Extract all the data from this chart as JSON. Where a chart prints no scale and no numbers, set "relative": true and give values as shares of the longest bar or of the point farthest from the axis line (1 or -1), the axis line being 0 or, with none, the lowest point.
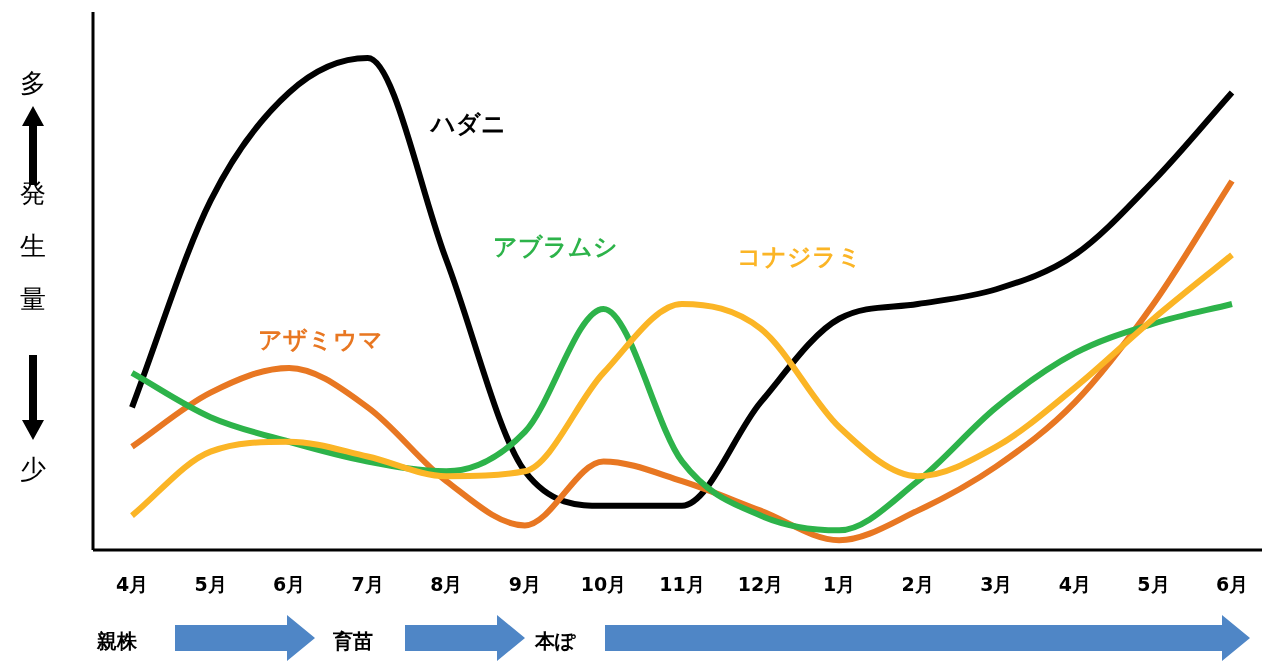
{
  "chart_data": {
    "type": "line",
    "relative": true,
    "ylabel": "発生量",
    "categories": [
      "4月",
      "5月",
      "6月",
      "7月",
      "8月",
      "9月",
      "10月",
      "11月",
      "12月",
      "1月",
      "2月",
      "3月",
      "4月",
      "5月",
      "6月"
    ],
    "series": [
      {
        "name": "ハダニ",
        "color": "#000000",
        "values": [
          0.29,
          0.71,
          0.93,
          1.0,
          0.59,
          0.16,
          0.09,
          0.09,
          0.3,
          0.47,
          0.5,
          0.53,
          0.6,
          0.75,
          0.93
        ]
      },
      {
        "name": "アザミウマ",
        "color": "#e87722",
        "values": [
          0.21,
          0.32,
          0.37,
          0.29,
          0.14,
          0.05,
          0.18,
          0.14,
          0.08,
          0.02,
          0.08,
          0.17,
          0.3,
          0.5,
          0.75
        ]
      },
      {
        "name": "アブラムシ",
        "color": "#2db34a",
        "values": [
          0.36,
          0.27,
          0.22,
          0.18,
          0.16,
          0.24,
          0.49,
          0.18,
          0.07,
          0.04,
          0.14,
          0.29,
          0.4,
          0.46,
          0.5
        ]
      },
      {
        "name": "コナジラミ",
        "color": "#fbb526",
        "values": [
          0.07,
          0.2,
          0.22,
          0.19,
          0.15,
          0.16,
          0.36,
          0.5,
          0.45,
          0.25,
          0.15,
          0.21,
          0.33,
          0.47,
          0.6
        ]
      }
    ],
    "annotations": [
      "多",
      "少",
      "親株",
      "育苗",
      "本ぽ"
    ],
    "line_style": "solid",
    "marker": "none",
    "grid": false,
    "legend": false
  }
}
